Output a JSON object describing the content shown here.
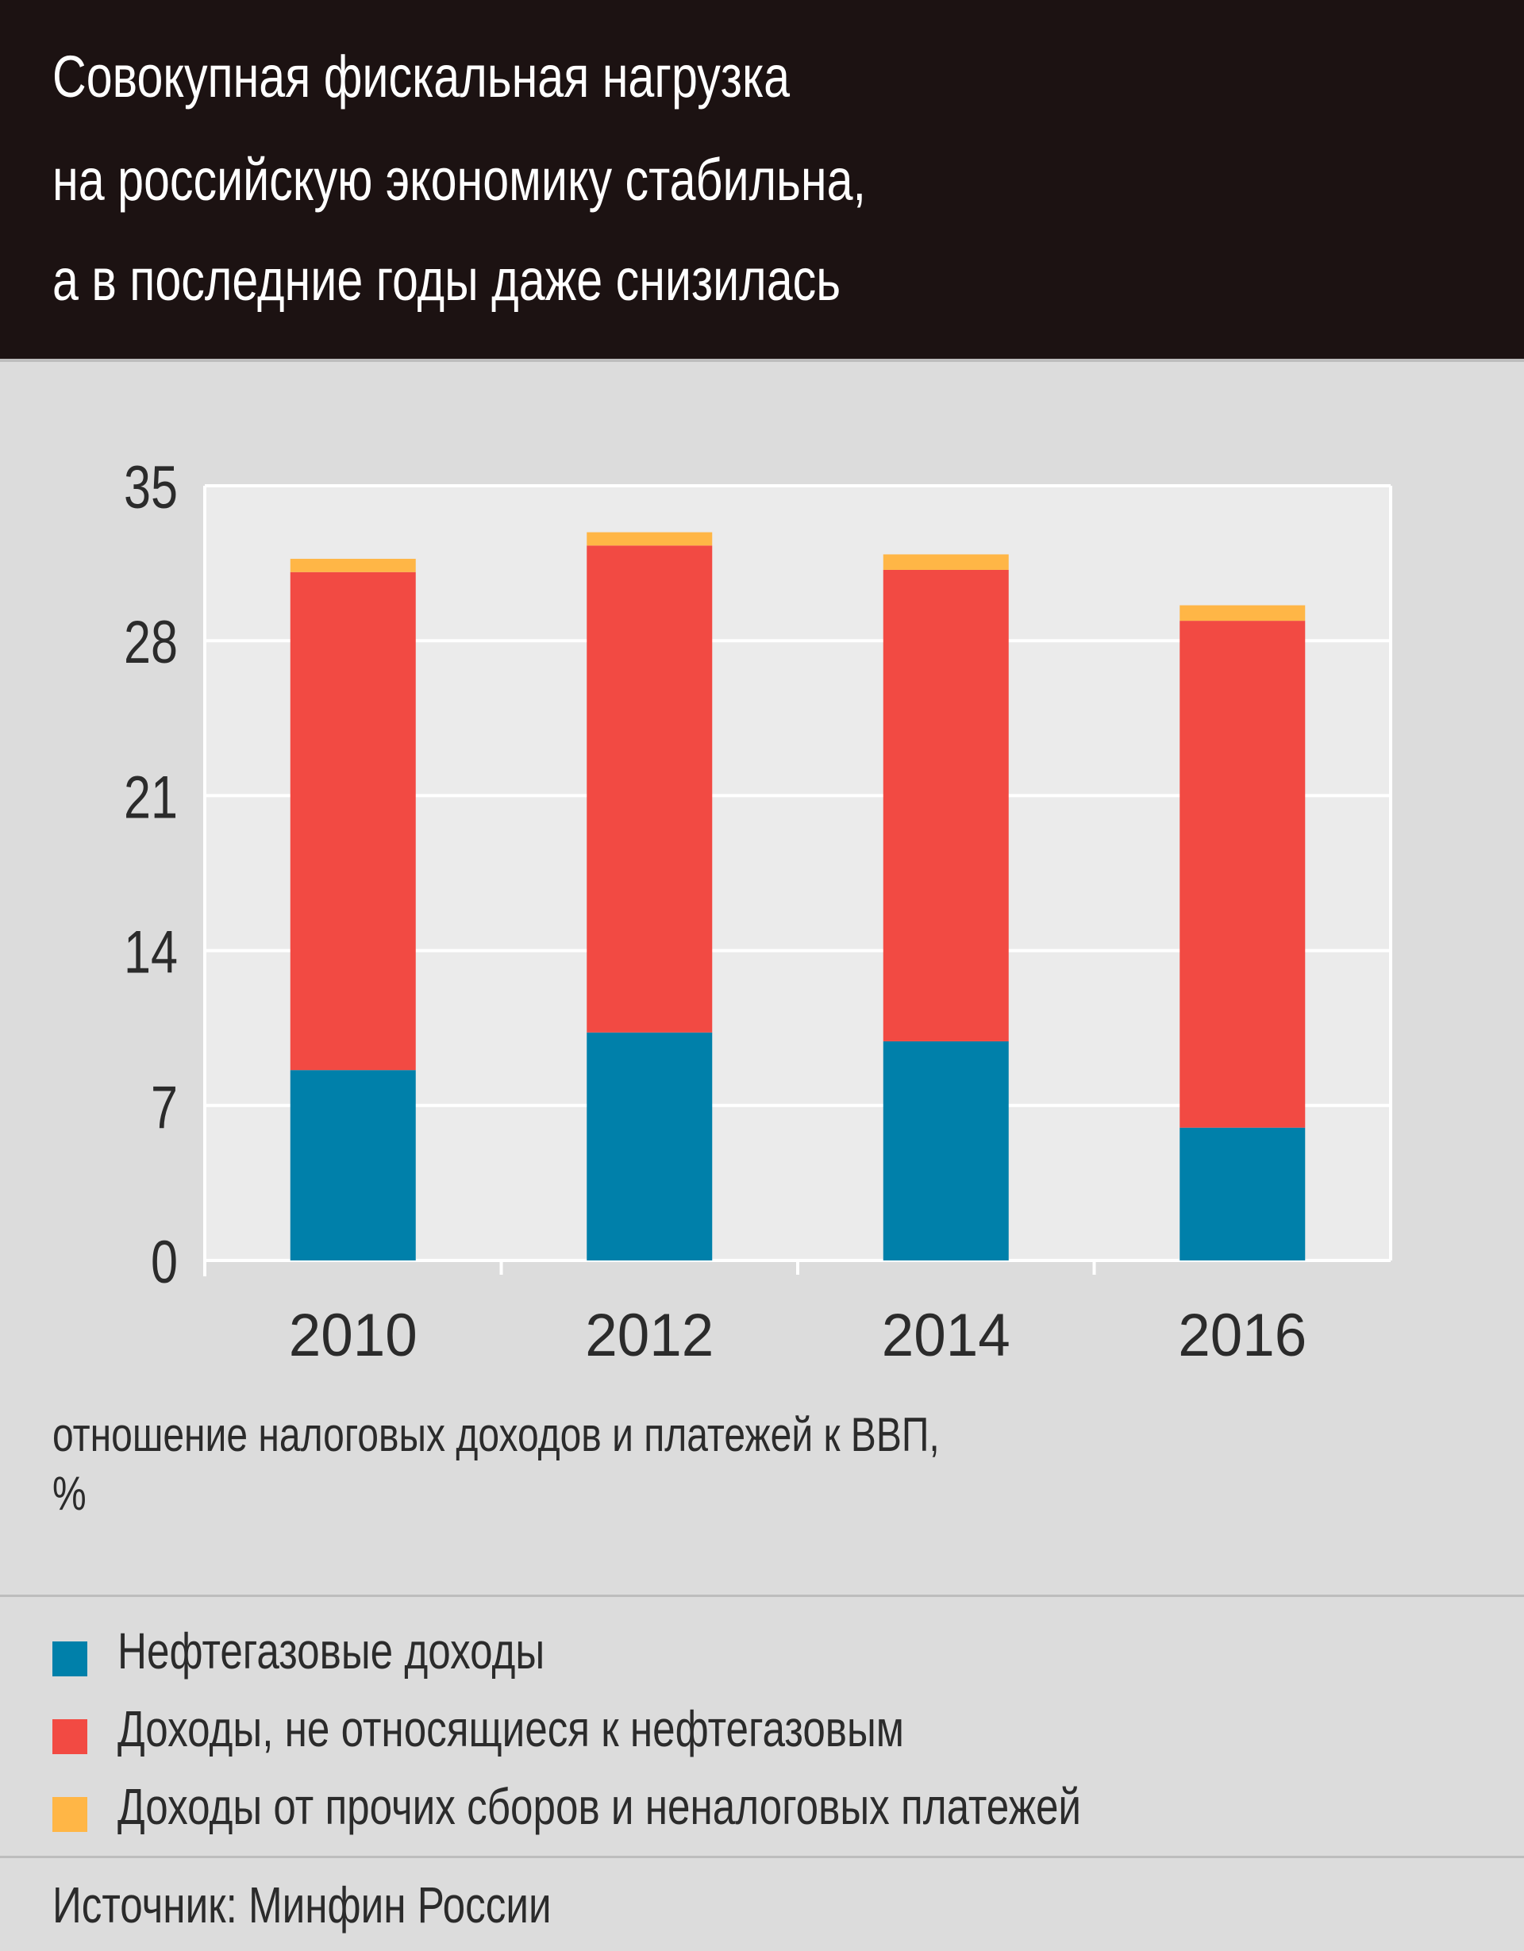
{
  "title": {
    "lines": [
      "Совокупная фискальная нагрузка",
      "на российскую экономику стабильна,",
      "а в последние годы даже снизилась"
    ]
  },
  "chart_data": {
    "type": "bar",
    "stacked": true,
    "categories": [
      "2010",
      "2012",
      "2014",
      "2016"
    ],
    "series": [
      {
        "name": "Нефтегазовые доходы",
        "color": "#0080aa",
        "values": [
          8.6,
          10.3,
          9.9,
          6.0
        ]
      },
      {
        "name": "Доходы, не относящиеся к нефтегазовым",
        "color": "#f24a43",
        "values": [
          22.5,
          22.0,
          21.3,
          22.9
        ]
      },
      {
        "name": "Доходы от прочих сборов и неналоговых платежей",
        "color": "#ffb646",
        "values": [
          0.6,
          0.6,
          0.7,
          0.7
        ]
      }
    ],
    "yticks": [
      0,
      7,
      14,
      21,
      28,
      35
    ],
    "ylim": [
      0,
      35
    ],
    "ylabel": "отношение налоговых доходов и платежей к ВВП, %",
    "grid": true
  },
  "ylabel_lines": [
    "отношение налоговых доходов и платежей к ВВП,",
    "%"
  ],
  "source": "Источник: Минфин России"
}
